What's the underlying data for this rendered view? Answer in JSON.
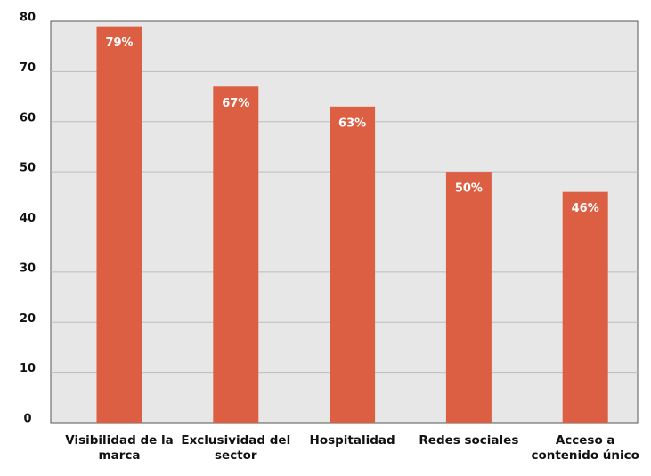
{
  "chart_data": {
    "type": "bar",
    "categories": [
      "Visibilidad de la marca",
      "Exclusividad del sector",
      "Hospitalidad",
      "Redes sociales",
      "Acceso a contenido único"
    ],
    "values": [
      79,
      67,
      63,
      50,
      46
    ],
    "value_labels": [
      "79%",
      "67%",
      "63%",
      "50%",
      "46%"
    ],
    "color": "#dc5f43",
    "ylim": [
      0,
      80
    ],
    "yticks": [
      0,
      10,
      20,
      30,
      40,
      50,
      60,
      70,
      80
    ],
    "grid": true
  }
}
